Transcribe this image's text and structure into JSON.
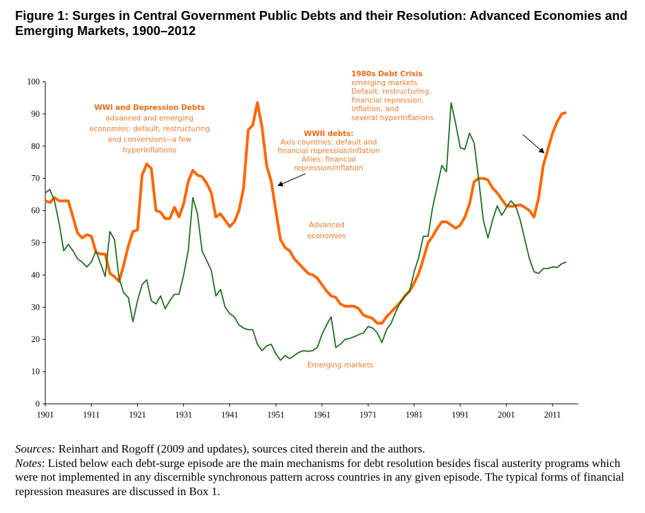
{
  "figure": {
    "title": "Figure 1: Surges in Central Government Public Debts and their Resolution: Advanced Economies and Emerging Markets, 1900–2012"
  },
  "chart_data": {
    "type": "line",
    "title": "Surges in Central Government Public Debts and their Resolution: Advanced Economies and Emerging Markets, 1900–2012",
    "xlabel": "",
    "ylabel": "",
    "ylim": [
      0,
      100
    ],
    "xlim": [
      1901,
      2016
    ],
    "yticks": [
      0,
      10,
      20,
      30,
      40,
      50,
      60,
      70,
      80,
      90,
      100
    ],
    "xticks": [
      1901,
      1911,
      1921,
      1931,
      1941,
      1951,
      1961,
      1971,
      1981,
      1991,
      2001,
      2011
    ],
    "grid": false,
    "legend": "none (inline series labels)",
    "x_start": 1901,
    "series": [
      {
        "name": "Advanced economies",
        "color": "#FF6600",
        "values": [
          63,
          62.5,
          64,
          63,
          63,
          63,
          58,
          53,
          51.5,
          52.5,
          52,
          47,
          46.5,
          46.5,
          40.5,
          39.5,
          38,
          43,
          49,
          53.5,
          54,
          71,
          74.5,
          73,
          60,
          59.5,
          57.5,
          57.5,
          61,
          58,
          62,
          69,
          72.5,
          71,
          70.5,
          68.5,
          65.5,
          58,
          59,
          57,
          55,
          56.5,
          60,
          67,
          85,
          86.5,
          93.5,
          86,
          74,
          69,
          60,
          51,
          48.5,
          47.5,
          45,
          43.5,
          42,
          40.5,
          40,
          39,
          37,
          35,
          33.5,
          33,
          31,
          30.3,
          30.3,
          30.3,
          29.5,
          27.5,
          27,
          26.5,
          25,
          25,
          27,
          28.5,
          30,
          31.5,
          33.5,
          35,
          37.5,
          40.5,
          45,
          50,
          52,
          54.5,
          56.5,
          56.5,
          55.5,
          54.5,
          55.5,
          58,
          62,
          69,
          70,
          70,
          69.5,
          67,
          65.5,
          63.5,
          61.5,
          61.3,
          61.5,
          61.8,
          61,
          60,
          58,
          64,
          74,
          79,
          84,
          87.5,
          90,
          90.5
        ]
      },
      {
        "name": "Emerging markets",
        "color": "#1B6E1B",
        "values": [
          65.5,
          66.5,
          63,
          56,
          47.5,
          49.5,
          47.5,
          45,
          44,
          42.5,
          44,
          47.5,
          43.5,
          39.5,
          53.5,
          51,
          39,
          34.5,
          33,
          25.5,
          32,
          37,
          38.5,
          32,
          31,
          33.5,
          29.5,
          32,
          34,
          34,
          40,
          47.5,
          64,
          59,
          47.5,
          44.5,
          41.5,
          33.5,
          35.5,
          30,
          28,
          27,
          24.5,
          23.5,
          23,
          23,
          18.5,
          16.5,
          18,
          18.5,
          15.5,
          13.5,
          15,
          14,
          15,
          16,
          16.5,
          16.3,
          16.5,
          17.5,
          21.5,
          24.5,
          27,
          17.5,
          18.5,
          20,
          20.3,
          20.8,
          21.5,
          22,
          24,
          23.5,
          22,
          19,
          23,
          25,
          28.5,
          31.5,
          33.5,
          35,
          41,
          45.5,
          52,
          52,
          61,
          67.5,
          74,
          72,
          93.5,
          87,
          79.5,
          79,
          84,
          81,
          69.5,
          57,
          51.5,
          57,
          61.5,
          58.5,
          61,
          63,
          61.5,
          57,
          51,
          45,
          41,
          40.5,
          42,
          42,
          42.5,
          42.3,
          43.5,
          44
        ]
      }
    ],
    "annotations": [
      {
        "id": "wwi",
        "heading": "WWI and Depression Debts",
        "lines": [
          "advanced  and emerging",
          "economies: default, restructuring",
          "and conversions--a few",
          "hyperinflations"
        ]
      },
      {
        "id": "wwii",
        "heading": "WWII debts:",
        "lines": [
          "Axis countries: default and",
          "financial repression/inflation",
          "Allies: financial",
          "repression/inflation"
        ]
      },
      {
        "id": "crisis80s",
        "heading": "1980s Debt Crisis",
        "lines": [
          "emerging markets",
          "Default, restructuring,",
          "financial repression,",
          "inflation, and",
          "several hyperinflations"
        ]
      },
      {
        "id": "adv-label",
        "heading": "",
        "lines": [
          "Advanced",
          "economies"
        ]
      },
      {
        "id": "em-label",
        "heading": "",
        "lines": [
          "Emerging markets"
        ]
      }
    ]
  },
  "notes": {
    "sources_label": "Sources:",
    "sources_text": "  Reinhart and Rogoff (2009 and updates), sources cited therein and the authors.",
    "notes_label": "Notes",
    "notes_text": ":  Listed below each debt-surge episode are the main mechanisms for debt resolution besides fiscal austerity programs which were not implemented in any discernible synchronous pattern across countries in any given episode.  The typical forms of financial repression measures are discussed in Box 1."
  }
}
